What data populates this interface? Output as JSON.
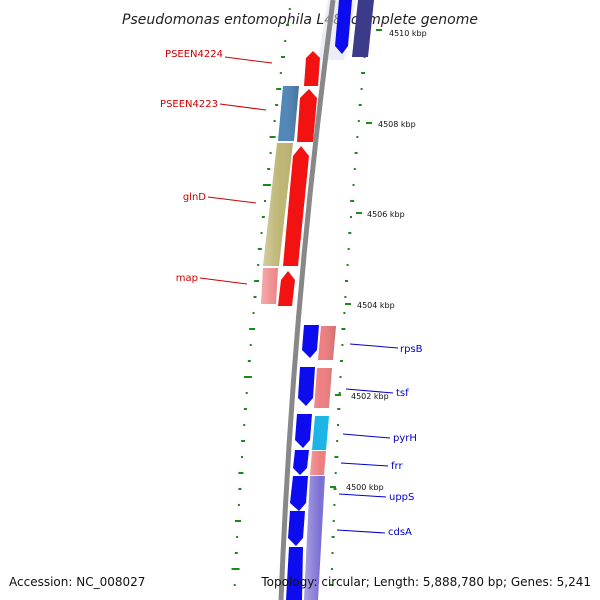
{
  "title": "Pseudomonas entomophila L48, complete genome",
  "accession": "Accession: NC_008027",
  "topology": "Topology: circular; Length: 5,888,780 bp; Genes: 5,241",
  "colors": {
    "backbone": "#888888",
    "gc_tick": "#1a8a1a",
    "red_gene": "#f21212",
    "blue_gene": "#0c0cee",
    "left_label": "#cc0000",
    "right_label": "#0000cc",
    "steelblue": "#4f86b8",
    "khaki": "#bdb673",
    "salmon": "#ee7e80",
    "cyan": "#1db5e6",
    "lavender": "#7b70d4",
    "darkslate": "#3b3b8a"
  },
  "kbp_labels": [
    "4510 kbp",
    "4508 kbp",
    "4506 kbp",
    "4504 kbp",
    "4502 kbp",
    "4500 kbp"
  ],
  "left_genes": [
    {
      "name": "PSEEN4224"
    },
    {
      "name": "PSEEN4223"
    },
    {
      "name": "glnD"
    },
    {
      "name": "map"
    }
  ],
  "right_genes": [
    {
      "name": "rpsB"
    },
    {
      "name": "tsf"
    },
    {
      "name": "pyrH"
    },
    {
      "name": "frr"
    },
    {
      "name": "uppS"
    },
    {
      "name": "cdsA"
    }
  ]
}
